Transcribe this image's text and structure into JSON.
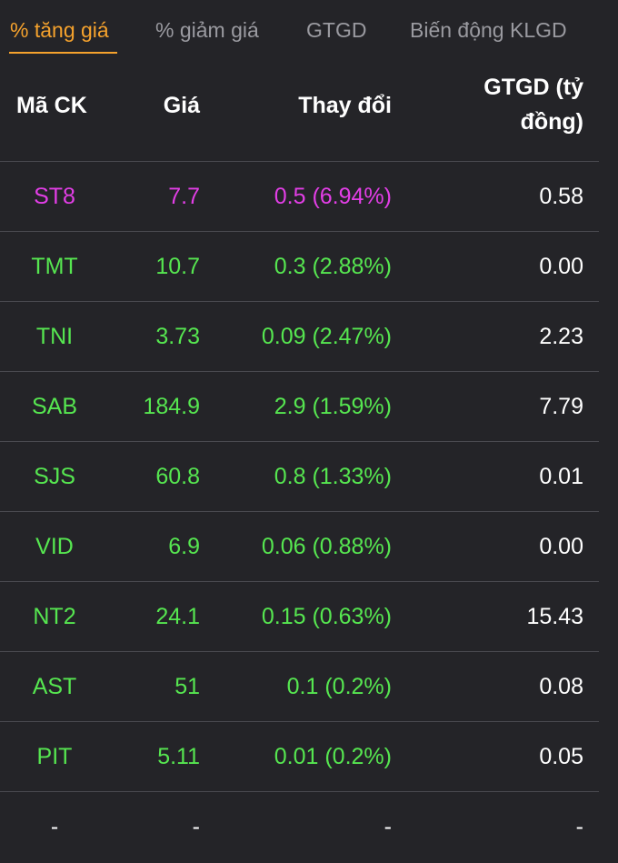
{
  "tabs": [
    {
      "label": "% tăng giá",
      "active": true
    },
    {
      "label": "% giảm giá",
      "active": false
    },
    {
      "label": "GTGD",
      "active": false
    },
    {
      "label": "Biến động KLGD",
      "active": false
    }
  ],
  "colors": {
    "accent": "#f5a22d",
    "ceiling": "#e23ee6",
    "up": "#56e650",
    "neutral": "#ffffff",
    "background": "#242428"
  },
  "columns": {
    "code": "Mã CK",
    "price": "Giá",
    "change": "Thay đổi",
    "value_line1": "GTGD (tỷ",
    "value_line2": "đồng)"
  },
  "rows": [
    {
      "code": "ST8",
      "price": "7.7",
      "change": "0.5 (6.94%)",
      "value": "0.58",
      "status": "ceiling"
    },
    {
      "code": "TMT",
      "price": "10.7",
      "change": "0.3 (2.88%)",
      "value": "0.00",
      "status": "up"
    },
    {
      "code": "TNI",
      "price": "3.73",
      "change": "0.09 (2.47%)",
      "value": "2.23",
      "status": "up"
    },
    {
      "code": "SAB",
      "price": "184.9",
      "change": "2.9 (1.59%)",
      "value": "7.79",
      "status": "up"
    },
    {
      "code": "SJS",
      "price": "60.8",
      "change": "0.8 (1.33%)",
      "value": "0.01",
      "status": "up"
    },
    {
      "code": "VID",
      "price": "6.9",
      "change": "0.06 (0.88%)",
      "value": "0.00",
      "status": "up"
    },
    {
      "code": "NT2",
      "price": "24.1",
      "change": "0.15 (0.63%)",
      "value": "15.43",
      "status": "up"
    },
    {
      "code": "AST",
      "price": "51",
      "change": "0.1 (0.2%)",
      "value": "0.08",
      "status": "up"
    },
    {
      "code": "PIT",
      "price": "5.11",
      "change": "0.01 (0.2%)",
      "value": "0.05",
      "status": "up"
    },
    {
      "code": "-",
      "price": "-",
      "change": "-",
      "value": "-",
      "status": "neutral"
    }
  ]
}
